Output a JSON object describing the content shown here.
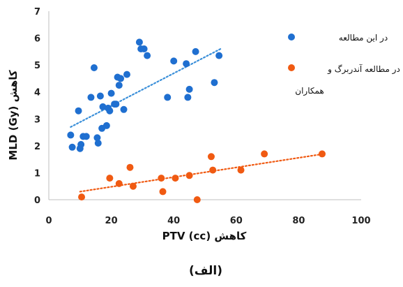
{
  "chart_data": {
    "type": "scatter",
    "panel_label": "(الف)",
    "xlabel": "کاهش PTV (cc)",
    "ylabel": "کاهش MLD (Gy)",
    "xlim": [
      0,
      100
    ],
    "ylim": [
      0,
      7
    ],
    "x_ticks": [
      0,
      20,
      40,
      60,
      80,
      100
    ],
    "y_ticks": [
      0,
      1,
      2,
      3,
      4,
      5,
      6,
      7
    ],
    "grid": false,
    "legend_position": "right",
    "series": [
      {
        "name": "در این مطالعه",
        "color": "#1f6fd0",
        "trendline_color": "#3a8fd9",
        "trendline": [
          [
            7,
            2.7
          ],
          [
            55,
            5.6
          ]
        ],
        "points": [
          [
            7,
            2.4
          ],
          [
            7.5,
            1.95
          ],
          [
            9.5,
            3.3
          ],
          [
            10,
            1.9
          ],
          [
            10.3,
            2.05
          ],
          [
            11,
            2.35
          ],
          [
            12,
            2.35
          ],
          [
            13.5,
            3.8
          ],
          [
            14.5,
            4.9
          ],
          [
            15.5,
            2.3
          ],
          [
            15.8,
            2.1
          ],
          [
            16.5,
            3.85
          ],
          [
            17,
            2.65
          ],
          [
            17.3,
            3.45
          ],
          [
            18.5,
            2.75
          ],
          [
            19,
            3.4
          ],
          [
            19.5,
            3.3
          ],
          [
            20,
            3.95
          ],
          [
            21,
            3.55
          ],
          [
            21.5,
            3.55
          ],
          [
            22,
            4.55
          ],
          [
            22.5,
            4.25
          ],
          [
            23,
            4.5
          ],
          [
            24,
            3.35
          ],
          [
            25,
            4.65
          ],
          [
            29,
            5.85
          ],
          [
            29.5,
            5.6
          ],
          [
            30.5,
            5.6
          ],
          [
            31.5,
            5.35
          ],
          [
            38,
            3.8
          ],
          [
            40,
            5.15
          ],
          [
            44,
            5.05
          ],
          [
            44.5,
            3.8
          ],
          [
            45,
            4.1
          ],
          [
            47,
            5.5
          ],
          [
            53,
            4.35
          ],
          [
            54.5,
            5.35
          ]
        ]
      },
      {
        "name": "در مطالعه آندربرگ و همکاران",
        "color": "#f05a12",
        "trendline_color": "#f05a12",
        "trendline": [
          [
            10,
            0.3
          ],
          [
            88,
            1.7
          ]
        ],
        "points": [
          [
            10.5,
            0.1
          ],
          [
            19.5,
            0.8
          ],
          [
            22.5,
            0.6
          ],
          [
            26,
            1.2
          ],
          [
            27,
            0.5
          ],
          [
            36,
            0.8
          ],
          [
            36.5,
            0.3
          ],
          [
            40.5,
            0.8
          ],
          [
            45,
            0.9
          ],
          [
            47.5,
            0.0
          ],
          [
            52,
            1.6
          ],
          [
            52.5,
            1.1
          ],
          [
            61.5,
            1.1
          ],
          [
            69,
            1.7
          ],
          [
            87.5,
            1.7
          ]
        ]
      }
    ]
  }
}
